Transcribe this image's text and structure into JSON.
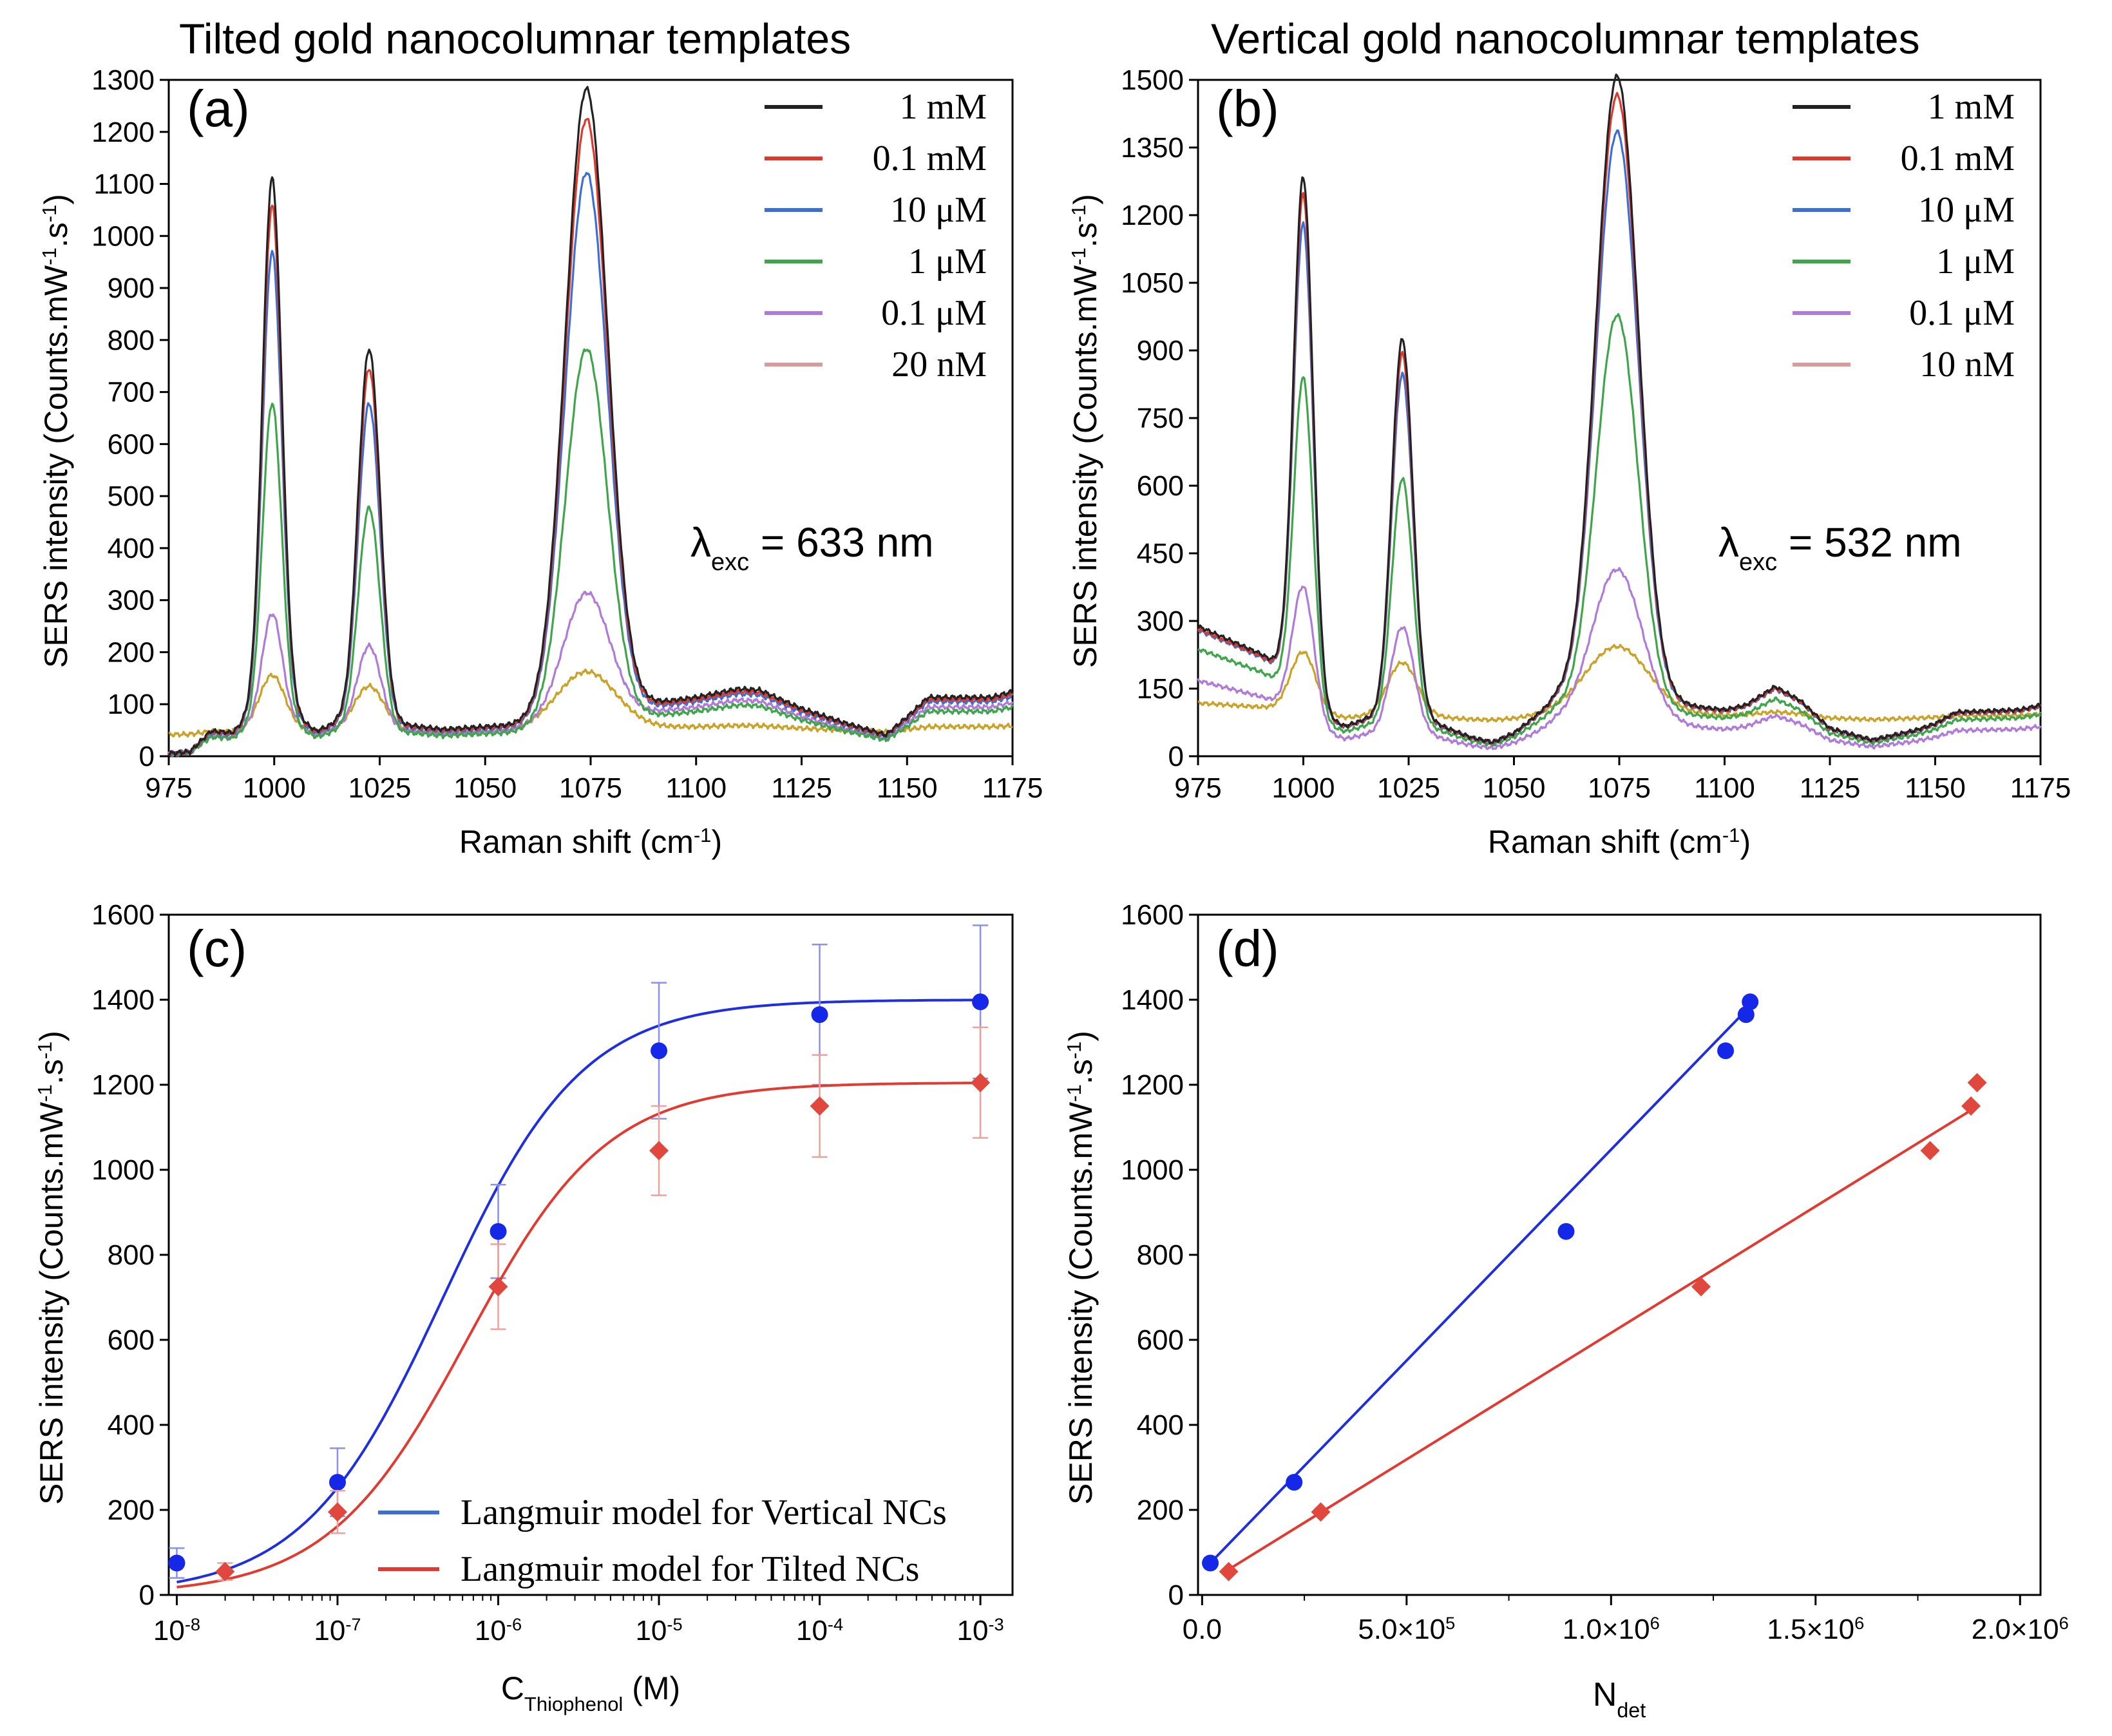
{
  "colors": {
    "black": "#222222",
    "red": "#e0392c",
    "blue": "#3b6fd8",
    "green": "#3ea54b",
    "purple": "#b07ad8",
    "pink": "#d89a9a",
    "gold": "#c9a227",
    "fit_blue": "#1f2fe0",
    "fit_red": "#e23a30",
    "marker_blue": "#1528e8",
    "marker_red": "#e0473d"
  },
  "chart_data": [
    {
      "id": "a",
      "type": "line",
      "panel_label": "(a)",
      "title": "Tilted gold nanocolumnar templates",
      "xlabel": "Raman shift (cm",
      "xlabel_sup": "-1",
      "xlabel_end": ")",
      "ylabel": "SERS intensity (Counts.mW",
      "ylabel_sup1": "-1",
      "ylabel_mid": ".s",
      "ylabel_sup2": "-1",
      "ylabel_end": ")",
      "xlim": [
        975,
        1175
      ],
      "ylim": [
        0,
        1300
      ],
      "xticks": [
        975,
        1000,
        1025,
        1050,
        1075,
        1100,
        1125,
        1150,
        1175
      ],
      "yticks": [
        0,
        100,
        200,
        300,
        400,
        500,
        600,
        700,
        800,
        900,
        1000,
        1100,
        1200,
        1300
      ],
      "annotation_lambda": "λ",
      "annotation_sub": "exc",
      "annotation_value": "= 633 nm",
      "legend": [
        "1 mM",
        "0.1 mM",
        "10 μM",
        "1 μM",
        "0.1 μM",
        "20 nM"
      ],
      "legend_colors": [
        "black",
        "red",
        "blue",
        "green",
        "purple",
        "pink"
      ],
      "baseline": [
        [
          975,
          5
        ],
        [
          980,
          8
        ],
        [
          985,
          45
        ],
        [
          990,
          42
        ],
        [
          993,
          60
        ],
        [
          1005,
          70
        ],
        [
          1010,
          45
        ],
        [
          1015,
          60
        ],
        [
          1032,
          55
        ],
        [
          1040,
          48
        ],
        [
          1055,
          55
        ],
        [
          1090,
          95
        ],
        [
          1100,
          105
        ],
        [
          1110,
          120
        ],
        [
          1115,
          118
        ],
        [
          1125,
          85
        ],
        [
          1135,
          60
        ],
        [
          1145,
          38
        ],
        [
          1150,
          70
        ],
        [
          1155,
          105
        ],
        [
          1170,
          105
        ],
        [
          1175,
          115
        ]
      ],
      "series": [
        {
          "name": "1 mM",
          "color": "black",
          "peaks": [
            [
              999.5,
              1040,
              2.3
            ],
            [
              1022.5,
              720,
              2.6
            ],
            [
              1074,
              1200,
              5.0
            ]
          ],
          "bscale": 1.08
        },
        {
          "name": "0.1 mM",
          "color": "red",
          "peaks": [
            [
              999.5,
              990,
              2.3
            ],
            [
              1022.5,
              685,
              2.6
            ],
            [
              1074,
              1145,
              5.0
            ]
          ],
          "bscale": 1.04
        },
        {
          "name": "10 μM",
          "color": "blue",
          "peaks": [
            [
              999.5,
              905,
              2.3
            ],
            [
              1022.5,
              620,
              2.6
            ],
            [
              1074,
              1045,
              5.0
            ]
          ],
          "bscale": 1.0
        },
        {
          "name": "1 μM",
          "color": "green",
          "peaks": [
            [
              999.5,
              625,
              2.3
            ],
            [
              1022.5,
              430,
              2.6
            ],
            [
              1074,
              720,
              5.0
            ]
          ],
          "bscale": 0.82
        },
        {
          "name": "0.1 μM",
          "color": "purple",
          "peaks": [
            [
              999.5,
              215,
              2.4
            ],
            [
              1022.5,
              160,
              2.8
            ],
            [
              1074,
              245,
              5.5
            ]
          ],
          "bscale": 0.9
        },
        {
          "name": "20 nM",
          "color": "gold",
          "peaks": [
            [
              999.5,
              105,
              3.0
            ],
            [
              1022.5,
              85,
              3.5
            ],
            [
              1074,
              110,
              7.0
            ]
          ],
          "flat": 50
        }
      ]
    },
    {
      "id": "b",
      "type": "line",
      "panel_label": "(b)",
      "title": "Vertical gold nanocolumnar templates",
      "xlabel": "Raman shift (cm",
      "xlabel_sup": "-1",
      "xlabel_end": ")",
      "ylabel": "SERS intensity (Counts.mW",
      "ylabel_sup1": "-1",
      "ylabel_mid": ".s",
      "ylabel_sup2": "-1",
      "ylabel_end": ")",
      "xlim": [
        975,
        1175
      ],
      "ylim": [
        0,
        1500
      ],
      "xticks": [
        975,
        1000,
        1025,
        1050,
        1075,
        1100,
        1125,
        1150,
        1175
      ],
      "yticks": [
        0,
        150,
        300,
        450,
        600,
        750,
        900,
        1050,
        1200,
        1350,
        1500
      ],
      "annotation_lambda": "λ",
      "annotation_sub": "exc",
      "annotation_value": "= 532 nm",
      "legend": [
        "1 mM",
        "0.1 mM",
        "10 μM",
        "1 μM",
        "0.1 μM",
        "10 nM"
      ],
      "legend_colors": [
        "black",
        "red",
        "blue",
        "green",
        "purple",
        "pink"
      ],
      "baseline": [
        [
          975,
          280
        ],
        [
          980,
          260
        ],
        [
          985,
          240
        ],
        [
          990,
          220
        ],
        [
          995,
          190
        ],
        [
          1005,
          80
        ],
        [
          1010,
          65
        ],
        [
          1015,
          80
        ],
        [
          1030,
          75
        ],
        [
          1040,
          40
        ],
        [
          1045,
          30
        ],
        [
          1050,
          50
        ],
        [
          1060,
          120
        ],
        [
          1090,
          110
        ],
        [
          1100,
          100
        ],
        [
          1105,
          110
        ],
        [
          1112,
          150
        ],
        [
          1118,
          120
        ],
        [
          1125,
          60
        ],
        [
          1135,
          35
        ],
        [
          1145,
          55
        ],
        [
          1150,
          70
        ],
        [
          1155,
          95
        ],
        [
          1170,
          100
        ],
        [
          1175,
          110
        ]
      ],
      "series": [
        {
          "name": "1 mM",
          "color": "black",
          "peaks": [
            [
              1000,
              1145,
              2.3
            ],
            [
              1023.5,
              845,
              2.5
            ],
            [
              1074.5,
              1390,
              5.0
            ]
          ],
          "bscale": 1.03
        },
        {
          "name": "0.1 mM",
          "color": "red",
          "peaks": [
            [
              1000,
              1110,
              2.3
            ],
            [
              1023.5,
              815,
              2.5
            ],
            [
              1074.5,
              1350,
              5.0
            ]
          ],
          "bscale": 1.01
        },
        {
          "name": "10 μM",
          "color": "blue",
          "peaks": [
            [
              1000,
              1045,
              2.3
            ],
            [
              1023.5,
              770,
              2.5
            ],
            [
              1074.5,
              1270,
              5.0
            ]
          ],
          "bscale": 1.0
        },
        {
          "name": "1 μM",
          "color": "green",
          "peaks": [
            [
              1000,
              725,
              2.3
            ],
            [
              1023.5,
              550,
              2.5
            ],
            [
              1074.5,
              880,
              5.0
            ]
          ],
          "bscale": 0.85
        },
        {
          "name": "0.1 μM",
          "color": "purple",
          "peaks": [
            [
              1000,
              295,
              2.6
            ],
            [
              1023.5,
              240,
              2.8
            ],
            [
              1074.5,
              345,
              6.0
            ]
          ],
          "bscale": 0.6
        },
        {
          "name": "10 nM",
          "color": "gold",
          "peaks": [
            [
              1000,
              135,
              3.0
            ],
            [
              1023.5,
              120,
              3.5
            ],
            [
              1074.5,
              150,
              7.5
            ]
          ],
          "flat": 85
        }
      ]
    },
    {
      "id": "c",
      "type": "scatter",
      "panel_label": "(c)",
      "xlabel": "C",
      "xlabel_sub": "Thiophenol",
      "xlabel_end": " (M)",
      "ylabel": "SERS intensity (Counts.mW",
      "ylabel_sup1": "-1",
      "ylabel_mid": ".s",
      "ylabel_sup2": "-1",
      "ylabel_end": ")",
      "xscale": "log",
      "xlim_log10": [
        -8.05,
        -2.8
      ],
      "ylim": [
        0,
        1600
      ],
      "xticks_exp": [
        -8,
        -7,
        -6,
        -5,
        -4,
        -3
      ],
      "xtick_base": "10",
      "yticks": [
        0,
        200,
        400,
        600,
        800,
        1000,
        1200,
        1400,
        1600
      ],
      "legend": [
        "Langmuir model for Vertical NCs",
        "Langmuir model for Tilted NCs"
      ],
      "legend_colors": [
        "blue",
        "red"
      ],
      "series": [
        {
          "name": "Vertical NCs",
          "marker": "circle",
          "color": "marker_blue",
          "points": [
            [
              -8,
              75,
              35
            ],
            [
              -7,
              265,
              80
            ],
            [
              -6,
              855,
              110
            ],
            [
              -5,
              1280,
              160
            ],
            [
              -4,
              1365,
              165
            ],
            [
              -3,
              1395,
              180
            ]
          ],
          "fit": {
            "Imax": 1400,
            "K": 2200000,
            "color": "fit_blue"
          }
        },
        {
          "name": "Tilted NCs",
          "marker": "diamond",
          "color": "marker_red",
          "points": [
            [
              -7.7,
              55,
              20
            ],
            [
              -7,
              195,
              50
            ],
            [
              -6,
              725,
              100
            ],
            [
              -5,
              1045,
              105
            ],
            [
              -4,
              1150,
              120
            ],
            [
              -3,
              1205,
              130
            ]
          ],
          "fit": {
            "Imax": 1205,
            "K": 1550000,
            "color": "fit_red"
          }
        }
      ]
    },
    {
      "id": "d",
      "type": "scatter",
      "panel_label": "(d)",
      "xlabel": "N",
      "xlabel_sub": "det",
      "ylabel": "SERS intensity (Counts.mW",
      "ylabel_sup1": "-1",
      "ylabel_mid": ".s",
      "ylabel_sup2": "-1",
      "ylabel_end": ")",
      "xlim": [
        -10000,
        2050000
      ],
      "ylim": [
        0,
        1600
      ],
      "xticks": [
        0,
        500000,
        1000000,
        1500000,
        2000000
      ],
      "xtick_labels": [
        "0.0",
        "5.0×10",
        "1.0×10",
        "1.5×10",
        "2.0×10"
      ],
      "xtick_sup": "6",
      "xtick_sup5": "5",
      "yticks": [
        0,
        200,
        400,
        600,
        800,
        1000,
        1200,
        1400,
        1600
      ],
      "series": [
        {
          "name": "Vertical NCs",
          "marker": "circle",
          "color": "marker_blue",
          "points": [
            [
              20000,
              75
            ],
            [
              225000,
              265
            ],
            [
              890000,
              855
            ],
            [
              1280000,
              1280
            ],
            [
              1330000,
              1365
            ],
            [
              1340000,
              1395
            ]
          ],
          "fit": [
            [
              30000,
              85
            ],
            [
              1330000,
              1375
            ]
          ],
          "fit_color": "fit_blue"
        },
        {
          "name": "Tilted NCs",
          "marker": "diamond",
          "color": "marker_red",
          "points": [
            [
              65000,
              55
            ],
            [
              290000,
              195
            ],
            [
              1220000,
              725
            ],
            [
              1780000,
              1045
            ],
            [
              1880000,
              1150
            ],
            [
              1895000,
              1205
            ]
          ],
          "fit": [
            [
              65000,
              60
            ],
            [
              1880000,
              1140
            ]
          ],
          "fit_color": "fit_red"
        }
      ]
    }
  ]
}
